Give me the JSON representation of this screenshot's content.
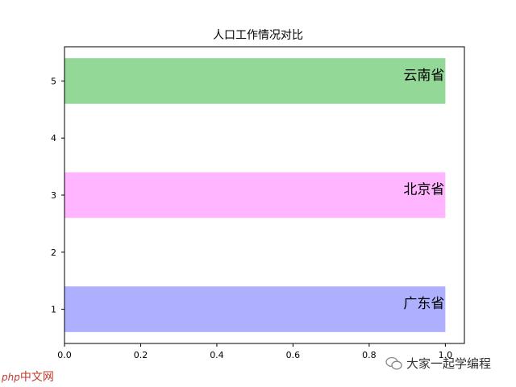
{
  "chart_data": {
    "type": "bar",
    "orientation": "horizontal",
    "title": "人口工作情况对比",
    "xlabel": "",
    "ylabel": "",
    "xlim": [
      0,
      1.05
    ],
    "ylim": [
      0.4,
      5.6
    ],
    "xticks": [
      "0.0",
      "0.2",
      "0.4",
      "0.6",
      "0.8",
      "1.0"
    ],
    "yticks": [
      "1",
      "2",
      "3",
      "4",
      "5"
    ],
    "bars": [
      {
        "y": 1,
        "value": 1.0,
        "label": "广东省",
        "color": "#aeb0ff"
      },
      {
        "y": 3,
        "value": 1.0,
        "label": "北京省",
        "color": "#ffb5ff"
      },
      {
        "y": 5,
        "value": 1.0,
        "label": "云南省",
        "color": "#93d896"
      }
    ],
    "bar_height": 0.8,
    "grid": false
  },
  "watermark": {
    "left_prefix": "php",
    "left_text": "中文网",
    "right_text": "大家一起学编程"
  }
}
